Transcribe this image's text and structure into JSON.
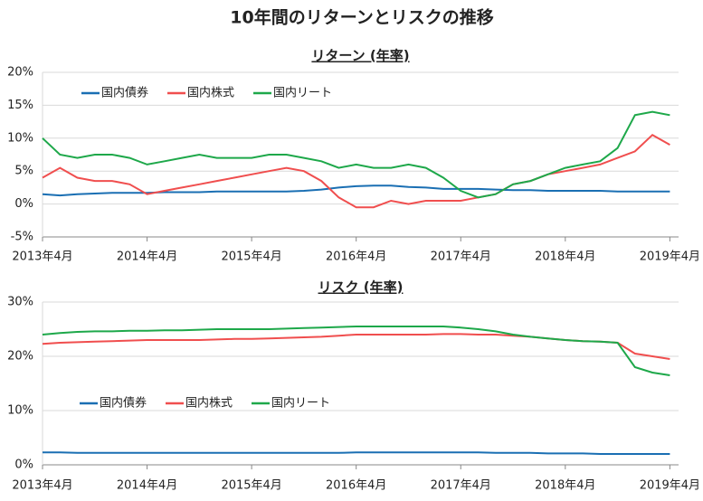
{
  "title": "10年間のリターンとリスクの推移",
  "chart_data": [
    {
      "type": "line",
      "title": "リターン (年率)",
      "legend": "upper left",
      "grid": true,
      "x": [
        "2013-04",
        "2013-06",
        "2013-08",
        "2013-10",
        "2013-12",
        "2014-02",
        "2014-04",
        "2014-06",
        "2014-08",
        "2014-10",
        "2014-12",
        "2015-02",
        "2015-04",
        "2015-06",
        "2015-08",
        "2015-10",
        "2015-12",
        "2016-02",
        "2016-04",
        "2016-06",
        "2016-08",
        "2016-10",
        "2016-12",
        "2017-02",
        "2017-04",
        "2017-06",
        "2017-08",
        "2017-10",
        "2017-12",
        "2018-02",
        "2018-04",
        "2018-06",
        "2018-08",
        "2018-10",
        "2018-12",
        "2019-02",
        "2019-04"
      ],
      "xlim": [
        "2013-04",
        "2019-05"
      ],
      "xticks": [
        {
          "value": "2013-04",
          "label": "2013年4月"
        },
        {
          "value": "2014-04",
          "label": "2014年4月"
        },
        {
          "value": "2015-04",
          "label": "2015年4月"
        },
        {
          "value": "2016-04",
          "label": "2016年4月"
        },
        {
          "value": "2017-04",
          "label": "2017年4月"
        },
        {
          "value": "2018-04",
          "label": "2018年4月"
        },
        {
          "value": "2019-04",
          "label": "2019年4月"
        }
      ],
      "ylim": [
        -5,
        20
      ],
      "yticks": [
        {
          "value": -5,
          "label": "-5%"
        },
        {
          "value": 0,
          "label": "0%"
        },
        {
          "value": 5,
          "label": "5%"
        },
        {
          "value": 10,
          "label": "10%"
        },
        {
          "value": 15,
          "label": "15%"
        },
        {
          "value": 20,
          "label": "20%"
        }
      ],
      "series": [
        {
          "name": "国内債券",
          "color": "#1a6fb3",
          "values": [
            1.5,
            1.3,
            1.5,
            1.6,
            1.7,
            1.7,
            1.7,
            1.8,
            1.8,
            1.8,
            1.9,
            1.9,
            1.9,
            1.9,
            1.9,
            2.0,
            2.2,
            2.5,
            2.7,
            2.8,
            2.8,
            2.6,
            2.5,
            2.3,
            2.3,
            2.3,
            2.2,
            2.1,
            2.1,
            2.0,
            2.0,
            2.0,
            2.0,
            1.9,
            1.9,
            1.9,
            1.9
          ]
        },
        {
          "name": "国内株式",
          "color": "#f04e4e",
          "values": [
            4,
            5.5,
            4,
            3.5,
            3.5,
            3,
            1.5,
            2,
            2.5,
            3,
            3.5,
            4,
            4.5,
            5,
            5.5,
            5,
            3.5,
            1,
            -0.5,
            -0.5,
            0.5,
            0,
            0.5,
            0.5,
            0.5,
            1,
            1.5,
            3,
            3.5,
            4.5,
            5,
            5.5,
            6,
            7,
            8,
            10.5,
            9
          ]
        },
        {
          "name": "国内リート",
          "color": "#1ea84a",
          "values": [
            10,
            7.5,
            7,
            7.5,
            7.5,
            7,
            6,
            6.5,
            7,
            7.5,
            7,
            7,
            7,
            7.5,
            7.5,
            7,
            6.5,
            5.5,
            6,
            5.5,
            5.5,
            6,
            5.5,
            4,
            2,
            1,
            1.5,
            3,
            3.5,
            4.5,
            5.5,
            6,
            6.5,
            8.5,
            13.5,
            14,
            13.5
          ]
        }
      ]
    },
    {
      "type": "line",
      "title": "リスク (年率)",
      "legend": "center left",
      "grid": true,
      "x": [
        "2013-04",
        "2013-06",
        "2013-08",
        "2013-10",
        "2013-12",
        "2014-02",
        "2014-04",
        "2014-06",
        "2014-08",
        "2014-10",
        "2014-12",
        "2015-02",
        "2015-04",
        "2015-06",
        "2015-08",
        "2015-10",
        "2015-12",
        "2016-02",
        "2016-04",
        "2016-06",
        "2016-08",
        "2016-10",
        "2016-12",
        "2017-02",
        "2017-04",
        "2017-06",
        "2017-08",
        "2017-10",
        "2017-12",
        "2018-02",
        "2018-04",
        "2018-06",
        "2018-08",
        "2018-10",
        "2018-12",
        "2019-02",
        "2019-04"
      ],
      "xlim": [
        "2013-04",
        "2019-05"
      ],
      "xticks": [
        {
          "value": "2013-04",
          "label": "2013年4月"
        },
        {
          "value": "2014-04",
          "label": "2014年4月"
        },
        {
          "value": "2015-04",
          "label": "2015年4月"
        },
        {
          "value": "2016-04",
          "label": "2016年4月"
        },
        {
          "value": "2017-04",
          "label": "2017年4月"
        },
        {
          "value": "2018-04",
          "label": "2018年4月"
        },
        {
          "value": "2019-04",
          "label": "2019年4月"
        }
      ],
      "ylim": [
        0,
        30
      ],
      "yticks": [
        {
          "value": 0,
          "label": "0%"
        },
        {
          "value": 10,
          "label": "10%"
        },
        {
          "value": 20,
          "label": "20%"
        },
        {
          "value": 30,
          "label": "30%"
        }
      ],
      "series": [
        {
          "name": "国内債券",
          "color": "#1a6fb3",
          "values": [
            2.3,
            2.3,
            2.2,
            2.2,
            2.2,
            2.2,
            2.2,
            2.2,
            2.2,
            2.2,
            2.2,
            2.2,
            2.2,
            2.2,
            2.2,
            2.2,
            2.2,
            2.2,
            2.3,
            2.3,
            2.3,
            2.3,
            2.3,
            2.3,
            2.3,
            2.3,
            2.2,
            2.2,
            2.2,
            2.1,
            2.1,
            2.1,
            2.0,
            2.0,
            2.0,
            2.0,
            2.0
          ]
        },
        {
          "name": "国内株式",
          "color": "#f04e4e",
          "values": [
            22.3,
            22.5,
            22.6,
            22.7,
            22.8,
            22.9,
            23,
            23,
            23,
            23,
            23.1,
            23.2,
            23.2,
            23.3,
            23.4,
            23.5,
            23.6,
            23.8,
            24,
            24,
            24,
            24,
            24,
            24.1,
            24.1,
            24,
            24,
            23.8,
            23.6,
            23.3,
            23,
            22.8,
            22.7,
            22.5,
            20.5,
            20,
            19.5
          ]
        },
        {
          "name": "国内リート",
          "color": "#1ea84a",
          "values": [
            24,
            24.3,
            24.5,
            24.6,
            24.6,
            24.7,
            24.7,
            24.8,
            24.8,
            24.9,
            25,
            25,
            25,
            25,
            25.1,
            25.2,
            25.3,
            25.4,
            25.5,
            25.5,
            25.5,
            25.5,
            25.5,
            25.5,
            25.3,
            25,
            24.6,
            24,
            23.6,
            23.3,
            23,
            22.8,
            22.7,
            22.5,
            18,
            17,
            16.5
          ]
        }
      ]
    }
  ]
}
